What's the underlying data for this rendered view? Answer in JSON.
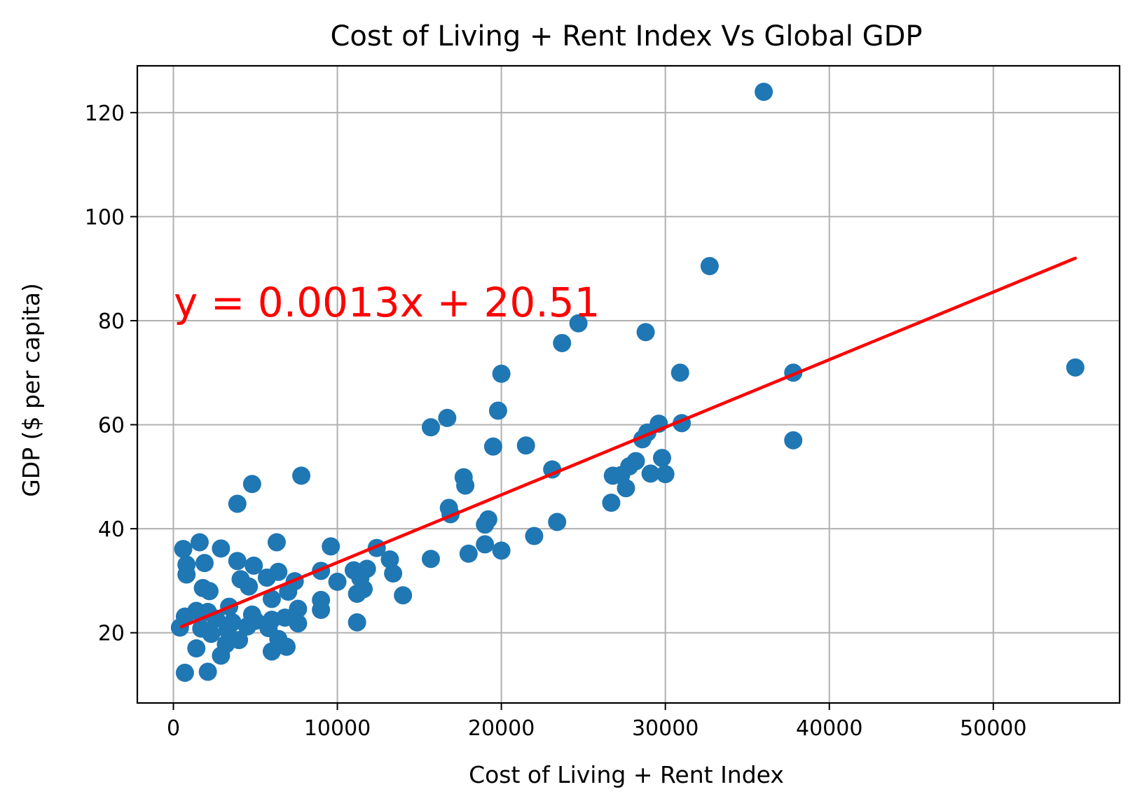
{
  "chart_data": {
    "type": "scatter",
    "title": "Cost of Living + Rent Index Vs Global GDP",
    "xlabel": "Cost of Living + Rent Index",
    "ylabel": "GDP ($ per capita)",
    "xlim": [
      -2200,
      57700
    ],
    "ylim": [
      6.5,
      129
    ],
    "x_ticks": [
      0,
      10000,
      20000,
      30000,
      40000,
      50000
    ],
    "y_ticks": [
      20,
      40,
      60,
      80,
      100,
      120
    ],
    "x_tick_labels": [
      "0",
      "10000",
      "20000",
      "30000",
      "40000",
      "50000"
    ],
    "y_tick_labels": [
      "20",
      "40",
      "60",
      "80",
      "100",
      "120"
    ],
    "grid": true,
    "colors": {
      "points": "#1f77b4",
      "regression_line": "#ff0000"
    },
    "regression": {
      "slope": 0.0013,
      "intercept": 20.51,
      "x_range": [
        500,
        55000
      ],
      "label": "y = 0.0013x + 20.51"
    },
    "series": [
      {
        "points": [
          [
            36000,
            124
          ],
          [
            32700,
            90.5
          ],
          [
            24700,
            79.5
          ],
          [
            23700,
            75.7
          ],
          [
            28800,
            77.8
          ],
          [
            30900,
            70
          ],
          [
            37800,
            70
          ],
          [
            55000,
            71
          ],
          [
            20000,
            69.8
          ],
          [
            19800,
            62.7
          ],
          [
            16700,
            61.3
          ],
          [
            15700,
            59.5
          ],
          [
            29600,
            60.2
          ],
          [
            31000,
            60.3
          ],
          [
            28900,
            58.5
          ],
          [
            28600,
            57.2
          ],
          [
            37800,
            57
          ],
          [
            19500,
            55.8
          ],
          [
            21500,
            56
          ],
          [
            23100,
            51.4
          ],
          [
            28200,
            53
          ],
          [
            27800,
            52
          ],
          [
            26800,
            50.2
          ],
          [
            27300,
            50.3
          ],
          [
            27600,
            47.8
          ],
          [
            29100,
            50.6
          ],
          [
            29800,
            53.6
          ],
          [
            30000,
            50.5
          ],
          [
            17700,
            49.9
          ],
          [
            17800,
            48.3
          ],
          [
            16800,
            44
          ],
          [
            16900,
            42.8
          ],
          [
            19200,
            41.8
          ],
          [
            19000,
            40.8
          ],
          [
            23400,
            41.3
          ],
          [
            26700,
            45
          ],
          [
            22000,
            38.6
          ],
          [
            19000,
            37
          ],
          [
            20000,
            35.8
          ],
          [
            18000,
            35.2
          ],
          [
            15700,
            34.2
          ],
          [
            7800,
            50.2
          ],
          [
            4800,
            48.6
          ],
          [
            3900,
            44.8
          ],
          [
            1600,
            37.4
          ],
          [
            6300,
            37.4
          ],
          [
            9600,
            36.6
          ],
          [
            2900,
            36.2
          ],
          [
            12400,
            36.3
          ],
          [
            600,
            36.1
          ],
          [
            13200,
            34.1
          ],
          [
            3900,
            33.8
          ],
          [
            1900,
            33.4
          ],
          [
            800,
            33.1
          ],
          [
            4900,
            32.9
          ],
          [
            6400,
            31.7
          ],
          [
            9000,
            31.9
          ],
          [
            11000,
            32
          ],
          [
            11800,
            32.3
          ],
          [
            13400,
            31.4
          ],
          [
            800,
            31.2
          ],
          [
            4100,
            30.3
          ],
          [
            5700,
            30.6
          ],
          [
            7400,
            29.9
          ],
          [
            10000,
            29.8
          ],
          [
            11400,
            30.5
          ],
          [
            4600,
            28.9
          ],
          [
            1800,
            28.6
          ],
          [
            2200,
            28
          ],
          [
            7000,
            27.9
          ],
          [
            11600,
            28.4
          ],
          [
            11200,
            27.5
          ],
          [
            14000,
            27.2
          ],
          [
            6000,
            26.5
          ],
          [
            9000,
            26.3
          ],
          [
            3400,
            25
          ],
          [
            1400,
            24.2
          ],
          [
            2100,
            24
          ],
          [
            7600,
            24.6
          ],
          [
            9000,
            24.4
          ],
          [
            4800,
            23.5
          ],
          [
            700,
            23.1
          ],
          [
            2600,
            22.7
          ],
          [
            6000,
            22.5
          ],
          [
            6800,
            22.9
          ],
          [
            3600,
            22
          ],
          [
            5000,
            22.3
          ],
          [
            11200,
            22
          ],
          [
            400,
            21
          ],
          [
            1700,
            20.8
          ],
          [
            3300,
            20.5
          ],
          [
            4500,
            21.2
          ],
          [
            5800,
            20.9
          ],
          [
            7600,
            21.8
          ],
          [
            2300,
            19.8
          ],
          [
            4000,
            18.6
          ],
          [
            6400,
            18.8
          ],
          [
            3200,
            17.8
          ],
          [
            1400,
            17
          ],
          [
            6900,
            17.3
          ],
          [
            6000,
            16.4
          ],
          [
            2900,
            15.6
          ],
          [
            700,
            12.3
          ],
          [
            2100,
            12.5
          ]
        ]
      }
    ]
  }
}
